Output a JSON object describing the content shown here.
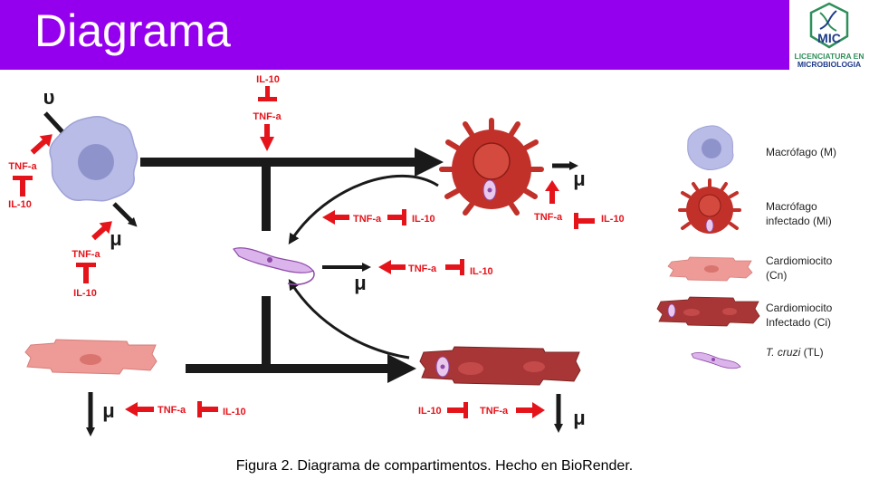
{
  "colors": {
    "header_purple": "#9400ee",
    "arrow_red": "#e5141b",
    "arrow_black": "#1a1a1a",
    "macrophage": "#b9bce6",
    "infected_macrophage": "#c1312a",
    "cardiomyocyte": "#ee9a96",
    "infected_cardiomyocyte": "#a93636",
    "logo_green": "#2f8f5a",
    "logo_blue": "#1f3a8a"
  },
  "header": {
    "title": "Diagrama"
  },
  "logo": {
    "mark": "MIC",
    "text_line1": "LICENCIATURA EN",
    "text_line2": "MICROBIOLOGIA"
  },
  "labels": {
    "upsilon": "υ",
    "mu": "μ",
    "il10": "IL-10",
    "tnfa": "TNF-a"
  },
  "legend": [
    {
      "label_line1": "Macrófago (M)",
      "label_line2": ""
    },
    {
      "label_line1": "Macrófago",
      "label_line2": "infectado (Mi)"
    },
    {
      "label_line1": "Cardiomiocito",
      "label_line2": "(Cn)"
    },
    {
      "label_line1": "Cardiomiocito",
      "label_line2": "Infectado (Ci)"
    },
    {
      "label_italic": "T. cruzi",
      "label_rest": " (TL)"
    }
  ],
  "caption": "Figura 2. Diagrama de compartimentos. Hecho en BioRender."
}
